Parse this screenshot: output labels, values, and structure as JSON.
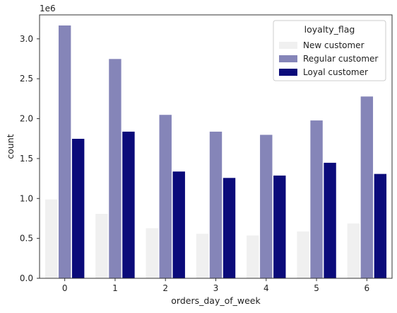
{
  "chart_data": {
    "type": "bar",
    "xlabel": "orders_day_of_week",
    "ylabel": "count",
    "offset_text": "1e6",
    "categories": [
      "0",
      "1",
      "2",
      "3",
      "4",
      "5",
      "6"
    ],
    "y_scale": 1000000,
    "ylim": [
      0,
      3300000
    ],
    "y_ticks": [
      0,
      500000,
      1000000,
      1500000,
      2000000,
      2500000,
      3000000
    ],
    "y_tick_labels": [
      "0.0",
      "0.5",
      "1.0",
      "1.5",
      "2.0",
      "2.5",
      "3.0"
    ],
    "grid": false,
    "legend": {
      "title": "loyalty_flag",
      "position": "top-right"
    },
    "series": [
      {
        "name": "New customer",
        "color": "#f0f0f0",
        "values": [
          990000,
          810000,
          630000,
          560000,
          540000,
          590000,
          690000
        ]
      },
      {
        "name": "Regular customer",
        "color": "#8585b8",
        "values": [
          3170000,
          2750000,
          2050000,
          1840000,
          1800000,
          1980000,
          2280000
        ]
      },
      {
        "name": "Loyal customer",
        "color": "#0b0b7a",
        "values": [
          1750000,
          1840000,
          1340000,
          1260000,
          1290000,
          1450000,
          1310000
        ]
      }
    ]
  }
}
